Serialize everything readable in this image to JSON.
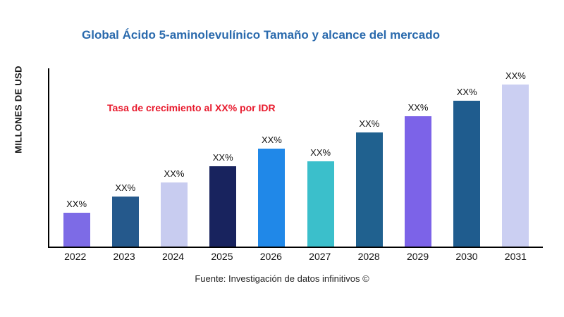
{
  "title": "Global Ácido 5-aminolevulínico Tamaño y alcance del mercado",
  "annotation": "Tasa de crecimiento al XX% por IDR",
  "source": "Fuente: Investigación de datos infinitivos ©",
  "colors": {
    "title": "#2a6aad",
    "annotation": "#e8192c",
    "axis": "#000000"
  },
  "chart_data": {
    "type": "bar",
    "title": "Global Ácido 5-aminolevulínico Tamaño y alcance del mercado",
    "xlabel": "",
    "ylabel": "MILLONES DE USD",
    "categories": [
      "2022",
      "2023",
      "2024",
      "2025",
      "2026",
      "2027",
      "2028",
      "2029",
      "2030",
      "2031"
    ],
    "values": [
      19,
      28,
      36,
      45,
      55,
      48,
      64,
      73,
      82,
      91
    ],
    "bar_labels": [
      "XX%",
      "XX%",
      "XX%",
      "XX%",
      "XX%",
      "XX%",
      "XX%",
      "XX%",
      "XX%",
      "XX%"
    ],
    "colors": [
      "#7d6be6",
      "#25598c",
      "#c8ccf0",
      "#18235e",
      "#2088e8",
      "#3bbfcb",
      "#20618f",
      "#7c63e8",
      "#1f5c8e",
      "#cbcff2"
    ],
    "ylim": [
      0,
      100
    ],
    "grid": false,
    "legend": "none",
    "annotation": "Tasa de crecimiento al XX% por IDR"
  }
}
